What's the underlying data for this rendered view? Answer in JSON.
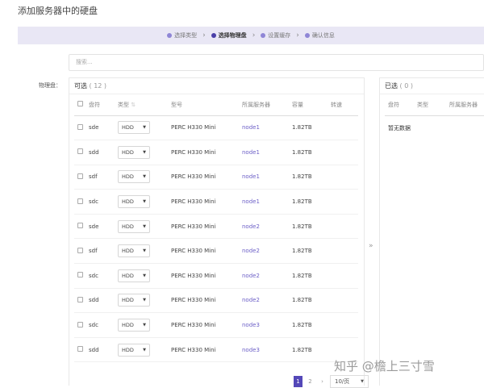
{
  "title": "添加服务器中的硬盘",
  "steps": [
    {
      "label": "选择类型"
    },
    {
      "label": "选择物理盘"
    },
    {
      "label": "设置缓存"
    },
    {
      "label": "确认信息"
    }
  ],
  "search": {
    "placeholder": "搜索..."
  },
  "field_label": "物理盘：",
  "available": {
    "title": "可选",
    "count": "( 12 )",
    "columns": [
      "盘符",
      "类型",
      "型号",
      "所属服务器",
      "容量",
      "转速"
    ],
    "rows": [
      {
        "disk": "sde",
        "type": "HDD",
        "model": "PERC H330 Mini",
        "server": "node1",
        "capacity": "1.82TB"
      },
      {
        "disk": "sdd",
        "type": "HDD",
        "model": "PERC H330 Mini",
        "server": "node1",
        "capacity": "1.82TB"
      },
      {
        "disk": "sdf",
        "type": "HDD",
        "model": "PERC H330 Mini",
        "server": "node1",
        "capacity": "1.82TB"
      },
      {
        "disk": "sdc",
        "type": "HDD",
        "model": "PERC H330 Mini",
        "server": "node1",
        "capacity": "1.82TB"
      },
      {
        "disk": "sde",
        "type": "HDD",
        "model": "PERC H330 Mini",
        "server": "node2",
        "capacity": "1.82TB"
      },
      {
        "disk": "sdf",
        "type": "HDD",
        "model": "PERC H330 Mini",
        "server": "node2",
        "capacity": "1.82TB"
      },
      {
        "disk": "sdc",
        "type": "HDD",
        "model": "PERC H330 Mini",
        "server": "node2",
        "capacity": "1.82TB"
      },
      {
        "disk": "sdd",
        "type": "HDD",
        "model": "PERC H330 Mini",
        "server": "node2",
        "capacity": "1.82TB"
      },
      {
        "disk": "sdc",
        "type": "HDD",
        "model": "PERC H330 Mini",
        "server": "node3",
        "capacity": "1.82TB"
      },
      {
        "disk": "sdd",
        "type": "HDD",
        "model": "PERC H330 Mini",
        "server": "node3",
        "capacity": "1.82TB"
      }
    ]
  },
  "transfer_arrow": "»",
  "selected": {
    "title": "已选",
    "count": "( 0 )",
    "columns": [
      "盘符",
      "类型",
      "所属服务器"
    ],
    "empty": "暂无数据"
  },
  "pagination": {
    "pages": [
      "1",
      "2"
    ],
    "next": "›",
    "page_size": "10/页"
  },
  "watermark": "知乎 @檐上三寸雪",
  "colors": {
    "accent": "#5448b8",
    "link": "#6c5fc7",
    "step_bar": "#e9e7f5"
  }
}
